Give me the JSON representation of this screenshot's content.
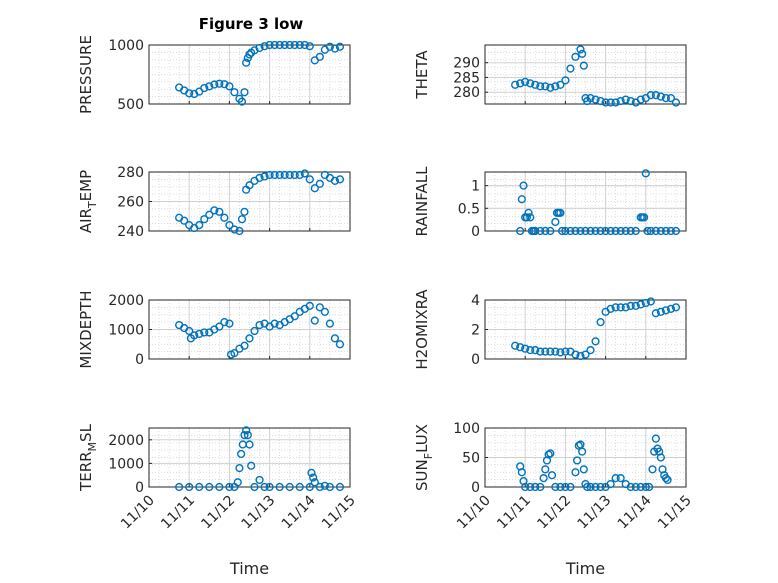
{
  "figure_title": "Figure 3 low",
  "colors": {
    "marker": "#0072BD",
    "grid": "#d0d0d0",
    "axis": "#262626"
  },
  "chart_data": [
    {
      "type": "scatter",
      "ylabel": "PRESSURE",
      "ylim": [
        500,
        1000
      ],
      "yticks": [
        500,
        1000
      ],
      "grid": true,
      "x": [
        "11/10 18:00",
        "11/10 21:00",
        "11/11 00:00",
        "11/11 03:00",
        "11/11 06:00",
        "11/11 09:00",
        "11/11 12:00",
        "11/11 15:00",
        "11/11 18:00",
        "11/11 21:00",
        "11/12 00:00",
        "11/12 03:00",
        "11/12 06:00",
        "11/12 07:30",
        "11/12 09:00",
        "11/12 10:00",
        "11/12 11:00",
        "11/12 12:00",
        "11/12 13:00",
        "11/12 15:00",
        "11/12 18:00",
        "11/12 21:00",
        "11/13 00:00",
        "11/13 03:00",
        "11/13 06:00",
        "11/13 09:00",
        "11/13 12:00",
        "11/13 15:00",
        "11/13 18:00",
        "11/13 21:00",
        "11/14 00:00",
        "11/14 03:00",
        "11/14 06:00",
        "11/14 09:00",
        "11/14 12:00",
        "11/14 15:00",
        "11/14 18:00"
      ],
      "y": [
        640,
        615,
        590,
        585,
        605,
        635,
        650,
        665,
        672,
        668,
        650,
        600,
        545,
        520,
        600,
        850,
        890,
        920,
        935,
        955,
        975,
        990,
        1000,
        1000,
        1000,
        1000,
        1000,
        1000,
        1000,
        1000,
        990,
        870,
        900,
        960,
        985,
        970,
        985
      ]
    },
    {
      "type": "scatter",
      "ylabel": "THETA",
      "ylim": [
        276,
        296
      ],
      "yticks": [
        280,
        285,
        290
      ],
      "grid": true,
      "x": [
        "11/10 18:00",
        "11/10 21:00",
        "11/11 00:00",
        "11/11 03:00",
        "11/11 06:00",
        "11/11 09:00",
        "11/11 12:00",
        "11/11 15:00",
        "11/11 18:00",
        "11/11 21:00",
        "11/12 00:00",
        "11/12 03:00",
        "11/12 06:00",
        "11/12 09:00",
        "11/12 10:00",
        "11/12 11:00",
        "11/12 12:00",
        "11/12 13:00",
        "11/12 15:00",
        "11/12 18:00",
        "11/12 21:00",
        "11/13 00:00",
        "11/13 03:00",
        "11/13 06:00",
        "11/13 09:00",
        "11/13 12:00",
        "11/13 15:00",
        "11/13 18:00",
        "11/13 21:00",
        "11/14 00:00",
        "11/14 03:00",
        "11/14 06:00",
        "11/14 09:00",
        "11/14 12:00",
        "11/14 15:00",
        "11/14 18:00"
      ],
      "y": [
        282.5,
        283,
        283.5,
        283,
        282.5,
        282,
        282,
        281.5,
        282,
        282.5,
        284,
        288,
        292,
        294.5,
        293,
        289,
        278,
        277,
        278,
        277.5,
        277,
        276.5,
        276.5,
        276.5,
        277,
        277.5,
        277,
        276.5,
        277.5,
        278,
        279,
        279,
        278.5,
        278,
        278,
        276.5
      ]
    },
    {
      "type": "scatter",
      "ylabel": "AIR_TEMP",
      "ylim": [
        240,
        280
      ],
      "yticks": [
        240,
        260,
        280
      ],
      "grid": true,
      "x": [
        "11/10 18:00",
        "11/10 21:00",
        "11/11 00:00",
        "11/11 03:00",
        "11/11 06:00",
        "11/11 09:00",
        "11/11 12:00",
        "11/11 15:00",
        "11/11 18:00",
        "11/11 21:00",
        "11/12 00:00",
        "11/12 03:00",
        "11/12 06:00",
        "11/12 07:30",
        "11/12 09:00",
        "11/12 10:00",
        "11/12 12:00",
        "11/12 15:00",
        "11/12 18:00",
        "11/12 21:00",
        "11/13 00:00",
        "11/13 03:00",
        "11/13 06:00",
        "11/13 09:00",
        "11/13 12:00",
        "11/13 15:00",
        "11/13 18:00",
        "11/13 21:00",
        "11/14 00:00",
        "11/14 03:00",
        "11/14 06:00",
        "11/14 09:00",
        "11/14 12:00",
        "11/14 15:00",
        "11/14 18:00"
      ],
      "y": [
        249,
        247,
        244,
        242,
        244,
        248,
        251,
        254,
        253,
        249,
        244,
        241,
        240,
        248,
        253,
        268,
        271,
        274,
        276,
        277,
        278,
        278,
        278,
        278,
        278,
        278,
        278,
        279,
        275,
        269,
        272,
        278,
        276,
        274,
        275
      ]
    },
    {
      "type": "scatter",
      "ylabel": "RAINFALL",
      "ylim": [
        0,
        1.3
      ],
      "yticks": [
        0,
        0.5,
        1
      ],
      "grid": true,
      "x": [
        "11/10 21:00",
        "11/10 22:00",
        "11/10 23:00",
        "11/11 00:00",
        "11/11 01:00",
        "11/11 02:00",
        "11/11 03:00",
        "11/11 04:00",
        "11/11 05:00",
        "11/11 06:00",
        "11/11 09:00",
        "11/11 12:00",
        "11/11 15:00",
        "11/11 18:00",
        "11/11 19:00",
        "11/11 20:00",
        "11/11 21:00",
        "11/11 22:00",
        "11/12 00:00",
        "11/12 03:00",
        "11/12 06:00",
        "11/12 09:00",
        "11/12 12:00",
        "11/12 15:00",
        "11/12 18:00",
        "11/12 21:00",
        "11/13 00:00",
        "11/13 03:00",
        "11/13 06:00",
        "11/13 09:00",
        "11/13 12:00",
        "11/13 15:00",
        "11/13 18:00",
        "11/13 21:00",
        "11/13 22:00",
        "11/13 23:00",
        "11/14 00:00",
        "11/14 01:00",
        "11/14 03:00",
        "11/14 06:00",
        "11/14 09:00",
        "11/14 12:00",
        "11/14 15:00",
        "11/14 18:00"
      ],
      "y": [
        0,
        0.7,
        1.0,
        0.3,
        0.3,
        0.4,
        0.3,
        0,
        0,
        0,
        0,
        0,
        0,
        0.2,
        0.4,
        0.4,
        0.4,
        0,
        0,
        0,
        0,
        0,
        0,
        0,
        0,
        0,
        0,
        0,
        0,
        0,
        0,
        0,
        0,
        0.3,
        0.3,
        0.3,
        1.27,
        0,
        0,
        0,
        0,
        0,
        0,
        0
      ]
    },
    {
      "type": "scatter",
      "ylabel": "MIXDEPTH",
      "ylim": [
        0,
        2000
      ],
      "yticks": [
        0,
        1000,
        2000
      ],
      "grid": true,
      "x": [
        "11/10 18:00",
        "11/10 21:00",
        "11/11 00:00",
        "11/11 01:00",
        "11/11 03:00",
        "11/11 06:00",
        "11/11 09:00",
        "11/11 12:00",
        "11/11 15:00",
        "11/11 18:00",
        "11/11 21:00",
        "11/12 00:00",
        "11/12 01:00",
        "11/12 03:00",
        "11/12 06:00",
        "11/12 09:00",
        "11/12 12:00",
        "11/12 15:00",
        "11/12 18:00",
        "11/12 21:00",
        "11/13 00:00",
        "11/13 03:00",
        "11/13 06:00",
        "11/13 09:00",
        "11/13 12:00",
        "11/13 15:00",
        "11/13 18:00",
        "11/13 21:00",
        "11/14 00:00",
        "11/14 03:00",
        "11/14 06:00",
        "11/14 09:00",
        "11/14 12:00",
        "11/14 15:00",
        "11/14 18:00"
      ],
      "y": [
        1150,
        1050,
        950,
        700,
        800,
        850,
        900,
        900,
        1000,
        1100,
        1250,
        1200,
        150,
        200,
        350,
        450,
        700,
        950,
        1150,
        1200,
        1100,
        1200,
        1150,
        1250,
        1350,
        1450,
        1600,
        1700,
        1800,
        1300,
        1750,
        1600,
        1200,
        700,
        500
      ]
    },
    {
      "type": "scatter",
      "ylabel": "H2OMIXRA",
      "ylim": [
        0,
        4
      ],
      "yticks": [
        0,
        2,
        4
      ],
      "grid": true,
      "x": [
        "11/10 18:00",
        "11/10 21:00",
        "11/11 00:00",
        "11/11 03:00",
        "11/11 06:00",
        "11/11 09:00",
        "11/11 12:00",
        "11/11 15:00",
        "11/11 18:00",
        "11/11 21:00",
        "11/12 00:00",
        "11/12 03:00",
        "11/12 06:00",
        "11/12 09:00",
        "11/12 12:00",
        "11/12 15:00",
        "11/12 18:00",
        "11/12 21:00",
        "11/13 00:00",
        "11/13 03:00",
        "11/13 06:00",
        "11/13 09:00",
        "11/13 12:00",
        "11/13 15:00",
        "11/13 18:00",
        "11/13 21:00",
        "11/14 00:00",
        "11/14 03:00",
        "11/14 06:00",
        "11/14 09:00",
        "11/14 12:00",
        "11/14 15:00",
        "11/14 18:00"
      ],
      "y": [
        0.9,
        0.8,
        0.7,
        0.6,
        0.6,
        0.5,
        0.5,
        0.5,
        0.5,
        0.45,
        0.5,
        0.5,
        0.3,
        0.2,
        0.3,
        0.6,
        1.2,
        2.5,
        3.2,
        3.4,
        3.5,
        3.5,
        3.5,
        3.6,
        3.6,
        3.7,
        3.8,
        3.9,
        3.1,
        3.2,
        3.3,
        3.4,
        3.5
      ]
    },
    {
      "type": "scatter",
      "ylabel": "TERR_MSL",
      "ylim": [
        0,
        2500
      ],
      "yticks": [
        0,
        1000,
        2000
      ],
      "grid": true,
      "x": [
        "11/10 18:00",
        "11/11 00:00",
        "11/11 06:00",
        "11/11 12:00",
        "11/11 18:00",
        "11/12 00:00",
        "11/12 03:00",
        "11/12 05:00",
        "11/12 06:00",
        "11/12 07:00",
        "11/12 08:00",
        "11/12 09:00",
        "11/12 10:00",
        "11/12 11:00",
        "11/12 12:00",
        "11/12 13:00",
        "11/12 15:00",
        "11/12 18:00",
        "11/12 21:00",
        "11/13 00:00",
        "11/13 06:00",
        "11/13 12:00",
        "11/13 18:00",
        "11/14 00:00",
        "11/14 01:00",
        "11/14 02:00",
        "11/14 03:00",
        "11/14 06:00",
        "11/14 09:00",
        "11/14 12:00",
        "11/14 18:00"
      ],
      "y": [
        0,
        0,
        0,
        0,
        0,
        0,
        0,
        200,
        800,
        1400,
        1800,
        2200,
        2400,
        2200,
        1800,
        900,
        0,
        300,
        0,
        0,
        0,
        0,
        0,
        0,
        600,
        400,
        200,
        0,
        50,
        0,
        0
      ]
    },
    {
      "type": "scatter",
      "ylabel": "SUN_FLUX",
      "ylim": [
        0,
        100
      ],
      "yticks": [
        0,
        50,
        100
      ],
      "grid": true,
      "x": [
        "11/10 21:00",
        "11/10 22:00",
        "11/10 23:00",
        "11/11 00:00",
        "11/11 03:00",
        "11/11 06:00",
        "11/11 09:00",
        "11/11 11:00",
        "11/11 12:00",
        "11/11 13:00",
        "11/11 14:00",
        "11/11 15:00",
        "11/11 16:00",
        "11/11 18:00",
        "11/11 21:00",
        "11/12 00:00",
        "11/12 03:00",
        "11/12 06:00",
        "11/12 07:00",
        "11/12 08:00",
        "11/12 09:00",
        "11/12 10:00",
        "11/12 11:00",
        "11/12 12:00",
        "11/12 13:00",
        "11/12 15:00",
        "11/12 18:00",
        "11/12 21:00",
        "11/13 00:00",
        "11/13 03:00",
        "11/13 06:00",
        "11/13 09:00",
        "11/13 12:00",
        "11/13 15:00",
        "11/13 18:00",
        "11/13 21:00",
        "11/14 00:00",
        "11/14 02:00",
        "11/14 04:00",
        "11/14 05:00",
        "11/14 06:00",
        "11/14 07:00",
        "11/14 08:00",
        "11/14 09:00",
        "11/14 10:00",
        "11/14 11:00",
        "11/14 12:00",
        "11/14 13:00"
      ],
      "y": [
        35,
        25,
        10,
        0,
        0,
        0,
        0,
        15,
        30,
        45,
        55,
        57,
        20,
        0,
        0,
        0,
        0,
        25,
        45,
        70,
        72,
        60,
        30,
        5,
        0,
        0,
        0,
        0,
        0,
        5,
        15,
        15,
        5,
        0,
        0,
        0,
        0,
        0,
        30,
        60,
        82,
        65,
        60,
        50,
        30,
        20,
        15,
        12
      ]
    }
  ],
  "x_axis": {
    "label": "Time",
    "ticks": [
      "11/10",
      "11/11",
      "11/12",
      "11/13",
      "11/14",
      "11/15"
    ],
    "range": [
      "11/10",
      "11/15"
    ]
  }
}
